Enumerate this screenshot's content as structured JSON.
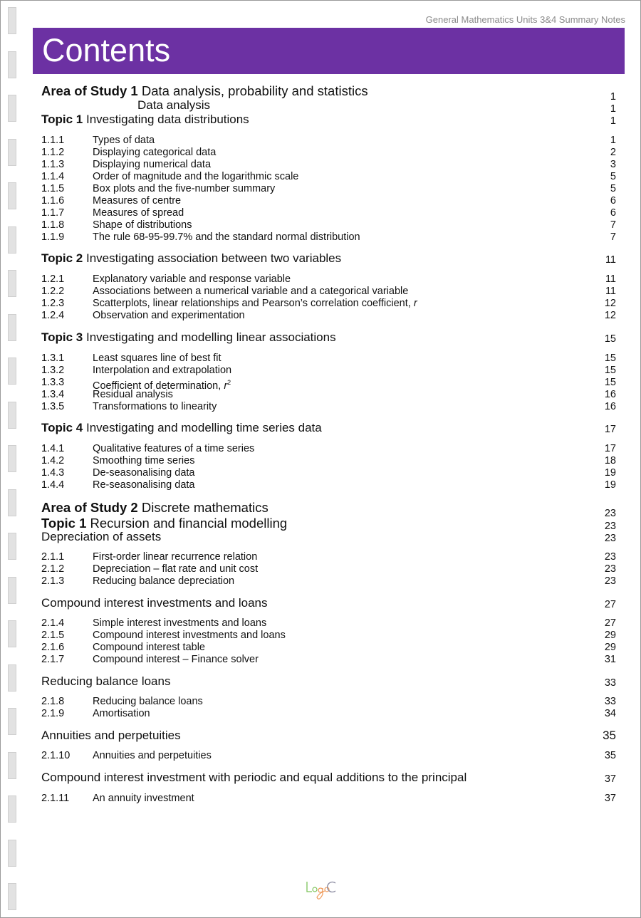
{
  "running_header": "General Mathematics Units 3&4 Summary Notes",
  "title": "Contents",
  "logo_text": "LogoC",
  "entries": [
    {
      "type": "aos",
      "label": "Area of Study 1",
      "title": "Data analysis, probability and statistics",
      "page": "1"
    },
    {
      "type": "sub",
      "title": "Data analysis",
      "page": "1"
    },
    {
      "type": "topic",
      "label": "Topic 1",
      "title": "Investigating data distributions",
      "page": "1"
    },
    {
      "type": "item",
      "num": "1.1.1",
      "title": "Types of data",
      "page": "1"
    },
    {
      "type": "item",
      "num": "1.1.2",
      "title": "Displaying categorical data",
      "page": "2"
    },
    {
      "type": "item",
      "num": "1.1.3",
      "title": "Displaying numerical data",
      "page": "3"
    },
    {
      "type": "item",
      "num": "1.1.4",
      "title": "Order of magnitude and the logarithmic scale",
      "page": "5"
    },
    {
      "type": "item",
      "num": "1.1.5",
      "title": "Box plots and the five-number summary",
      "page": "5"
    },
    {
      "type": "item",
      "num": "1.1.6",
      "title": "Measures of centre",
      "page": "6"
    },
    {
      "type": "item",
      "num": "1.1.7",
      "title": "Measures of spread",
      "page": "6"
    },
    {
      "type": "item",
      "num": "1.1.8",
      "title": "Shape of distributions",
      "page": "7"
    },
    {
      "type": "item",
      "num": "1.1.9",
      "title": "The rule 68-95-99.7% and the standard normal distribution",
      "page": "7"
    },
    {
      "type": "topic",
      "label": "Topic 2",
      "title": "Investigating association between two variables",
      "page": "11"
    },
    {
      "type": "item",
      "num": "1.2.1",
      "title": "Explanatory variable and response variable",
      "page": "11"
    },
    {
      "type": "item",
      "num": "1.2.2",
      "title": "Associations between a numerical variable and a categorical variable",
      "page": "11"
    },
    {
      "type": "item",
      "num": "1.2.3",
      "title": "Scatterplots, linear relationships and Pearson’s correlation coefficient, ",
      "var": "r",
      "page": "12"
    },
    {
      "type": "item",
      "num": "1.2.4",
      "title": "Observation and experimentation",
      "page": "12"
    },
    {
      "type": "topic",
      "label": "Topic 3",
      "title": "Investigating and modelling linear associations",
      "page": "15"
    },
    {
      "type": "item",
      "num": "1.3.1",
      "title": "Least squares line of best fit",
      "page": "15"
    },
    {
      "type": "item",
      "num": "1.3.2",
      "title": "Interpolation and extrapolation",
      "page": "15"
    },
    {
      "type": "item",
      "num": "1.3.3",
      "title": "Coefficient of determination, ",
      "var": "r",
      "sup": "2",
      "page": "15"
    },
    {
      "type": "item",
      "num": "1.3.4",
      "title": "Residual analysis",
      "page": "16"
    },
    {
      "type": "item",
      "num": "1.3.5",
      "title": "Transformations to linearity",
      "page": "16"
    },
    {
      "type": "topic",
      "label": "Topic 4",
      "title": "Investigating and modelling time series data",
      "page": "17"
    },
    {
      "type": "item",
      "num": "1.4.1",
      "title": "Qualitative features of a time series",
      "page": "17"
    },
    {
      "type": "item",
      "num": "1.4.2",
      "title": "Smoothing time series",
      "page": "18"
    },
    {
      "type": "item",
      "num": "1.4.3",
      "title": "De-seasonalising data",
      "page": "19"
    },
    {
      "type": "item",
      "num": "1.4.4",
      "title": "Re-seasonalising data",
      "page": "19"
    },
    {
      "type": "aos",
      "label": "Area of Study 2",
      "title": "Discrete mathematics",
      "page": "23"
    },
    {
      "type": "aos",
      "label": "Topic 1",
      "title": "Recursion and financial modelling",
      "page": "23"
    },
    {
      "type": "section",
      "title": "Depreciation of assets",
      "page": "23"
    },
    {
      "type": "item",
      "num": "2.1.1",
      "title": "First-order linear recurrence relation",
      "page": "23"
    },
    {
      "type": "item",
      "num": "2.1.2",
      "title": "Depreciation – flat rate and unit cost",
      "page": "23"
    },
    {
      "type": "item",
      "num": "2.1.3",
      "title": "Reducing balance depreciation",
      "page": "23"
    },
    {
      "type": "section",
      "title": "Compound interest investments and loans",
      "page": "27"
    },
    {
      "type": "item",
      "num": "2.1.4",
      "title": "Simple interest investments and loans",
      "page": "27"
    },
    {
      "type": "item",
      "num": "2.1.5",
      "title": "Compound interest investments and loans",
      "page": "29"
    },
    {
      "type": "item",
      "num": "2.1.6",
      "title": "Compound interest table",
      "page": "29"
    },
    {
      "type": "item",
      "num": "2.1.7",
      "title": "Compound interest – Finance solver",
      "page": "31"
    },
    {
      "type": "section",
      "title": "Reducing balance loans",
      "page": "33"
    },
    {
      "type": "item",
      "num": "2.1.8",
      "title": "Reducing balance loans",
      "page": "33"
    },
    {
      "type": "item",
      "num": "2.1.9",
      "title": "Amortisation",
      "page": "34"
    },
    {
      "type": "section",
      "title": "Annuities and perpetuities",
      "page": "35"
    },
    {
      "type": "item",
      "num": "2.1.10",
      "title": "Annuities and perpetuities",
      "page": "35"
    },
    {
      "type": "section",
      "title": "Compound interest investment with periodic and equal additions to the principal",
      "page": "37"
    },
    {
      "type": "item",
      "num": "2.1.11",
      "title": "An annuity investment",
      "page": "37"
    }
  ]
}
